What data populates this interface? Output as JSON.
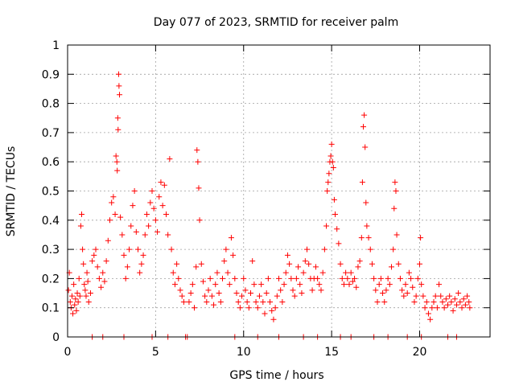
{
  "chart_data": {
    "type": "scatter",
    "title": "Day 077 of 2023, SRMTID for receiver palm",
    "xlabel": "GPS time / hours",
    "ylabel": "SRMTID / TECUs",
    "xlim": [
      0,
      24
    ],
    "ylim": [
      0,
      1
    ],
    "x_ticks": [
      0,
      5,
      10,
      15,
      20
    ],
    "x_tick_labels": [
      "0",
      "5",
      "10",
      "15",
      "20"
    ],
    "y_ticks": [
      0,
      0.1,
      0.2,
      0.3,
      0.4,
      0.5,
      0.6,
      0.7,
      0.8,
      0.9,
      1
    ],
    "y_tick_labels": [
      "0",
      "0.1",
      "0.2",
      "0.3",
      "0.4",
      "0.5",
      "0.6",
      "0.7",
      "0.8",
      "0.9",
      "1"
    ],
    "grid": true,
    "marker": "+",
    "series_color": "#ff0000",
    "series": [
      {
        "name": "SRMTID",
        "points": [
          [
            0.05,
            0.16
          ],
          [
            0.1,
            0.22
          ],
          [
            0.15,
            0.12
          ],
          [
            0.2,
            0.1
          ],
          [
            0.25,
            0.14
          ],
          [
            0.3,
            0.08
          ],
          [
            0.35,
            0.18
          ],
          [
            0.4,
            0.11
          ],
          [
            0.45,
            0.13
          ],
          [
            0.5,
            0.09
          ],
          [
            0.55,
            0.15
          ],
          [
            0.6,
            0.12
          ],
          [
            0.65,
            0.2
          ],
          [
            0.7,
            0.14
          ],
          [
            0.75,
            0.38
          ],
          [
            0.8,
            0.42
          ],
          [
            0.85,
            0.3
          ],
          [
            0.9,
            0.25
          ],
          [
            0.95,
            0.18
          ],
          [
            1.0,
            0.16
          ],
          [
            1.05,
            0.14
          ],
          [
            1.1,
            0.22
          ],
          [
            1.15,
            0.19
          ],
          [
            1.2,
            0.12
          ],
          [
            1.3,
            0.15
          ],
          [
            1.4,
            0.26
          ],
          [
            1.5,
            0.28
          ],
          [
            1.6,
            0.3
          ],
          [
            1.7,
            0.24
          ],
          [
            1.8,
            0.2
          ],
          [
            1.9,
            0.17
          ],
          [
            2.0,
            0.22
          ],
          [
            2.1,
            0.19
          ],
          [
            2.2,
            0.26
          ],
          [
            2.3,
            0.33
          ],
          [
            2.4,
            0.4
          ],
          [
            2.5,
            0.46
          ],
          [
            2.6,
            0.48
          ],
          [
            2.7,
            0.42
          ],
          [
            2.75,
            0.62
          ],
          [
            2.8,
            0.6
          ],
          [
            2.82,
            0.57
          ],
          [
            2.85,
            0.75
          ],
          [
            2.87,
            0.71
          ],
          [
            2.9,
            0.9
          ],
          [
            2.92,
            0.86
          ],
          [
            2.95,
            0.83
          ],
          [
            3.0,
            0.41
          ],
          [
            3.1,
            0.35
          ],
          [
            3.2,
            0.28
          ],
          [
            3.3,
            0.2
          ],
          [
            3.4,
            0.24
          ],
          [
            3.5,
            0.3
          ],
          [
            3.6,
            0.38
          ],
          [
            3.7,
            0.45
          ],
          [
            3.8,
            0.5
          ],
          [
            3.9,
            0.36
          ],
          [
            4.0,
            0.3
          ],
          [
            4.1,
            0.22
          ],
          [
            4.2,
            0.25
          ],
          [
            4.3,
            0.28
          ],
          [
            4.4,
            0.35
          ],
          [
            4.5,
            0.42
          ],
          [
            4.6,
            0.38
          ],
          [
            4.7,
            0.46
          ],
          [
            4.8,
            0.5
          ],
          [
            4.9,
            0.44
          ],
          [
            5.0,
            0.4
          ],
          [
            5.1,
            0.36
          ],
          [
            5.2,
            0.48
          ],
          [
            5.3,
            0.53
          ],
          [
            5.4,
            0.45
          ],
          [
            5.5,
            0.52
          ],
          [
            5.6,
            0.42
          ],
          [
            5.7,
            0.35
          ],
          [
            5.8,
            0.61
          ],
          [
            5.9,
            0.3
          ],
          [
            6.0,
            0.22
          ],
          [
            6.1,
            0.18
          ],
          [
            6.2,
            0.25
          ],
          [
            6.3,
            0.2
          ],
          [
            6.4,
            0.16
          ],
          [
            6.5,
            0.14
          ],
          [
            6.6,
            0.12
          ],
          [
            6.7,
            0.0
          ],
          [
            6.8,
            0.0
          ],
          [
            6.9,
            0.12
          ],
          [
            7.0,
            0.15
          ],
          [
            7.1,
            0.18
          ],
          [
            7.2,
            0.1
          ],
          [
            7.3,
            0.24
          ],
          [
            7.35,
            0.64
          ],
          [
            7.4,
            0.6
          ],
          [
            7.45,
            0.51
          ],
          [
            7.5,
            0.4
          ],
          [
            7.6,
            0.25
          ],
          [
            7.7,
            0.19
          ],
          [
            7.8,
            0.14
          ],
          [
            7.9,
            0.12
          ],
          [
            8.0,
            0.16
          ],
          [
            8.1,
            0.2
          ],
          [
            8.2,
            0.14
          ],
          [
            8.3,
            0.11
          ],
          [
            8.4,
            0.18
          ],
          [
            8.5,
            0.22
          ],
          [
            8.6,
            0.15
          ],
          [
            8.7,
            0.12
          ],
          [
            8.8,
            0.2
          ],
          [
            8.9,
            0.26
          ],
          [
            9.0,
            0.3
          ],
          [
            9.1,
            0.22
          ],
          [
            9.2,
            0.18
          ],
          [
            9.3,
            0.34
          ],
          [
            9.4,
            0.28
          ],
          [
            9.5,
            0.2
          ],
          [
            9.6,
            0.15
          ],
          [
            9.7,
            0.12
          ],
          [
            9.8,
            0.1
          ],
          [
            9.9,
            0.14
          ],
          [
            10.0,
            0.2
          ],
          [
            10.1,
            0.16
          ],
          [
            10.2,
            0.12
          ],
          [
            10.3,
            0.1
          ],
          [
            10.4,
            0.15
          ],
          [
            10.5,
            0.26
          ],
          [
            10.6,
            0.18
          ],
          [
            10.7,
            0.12
          ],
          [
            10.8,
            0.1
          ],
          [
            10.9,
            0.14
          ],
          [
            11.0,
            0.18
          ],
          [
            11.1,
            0.12
          ],
          [
            11.2,
            0.08
          ],
          [
            11.3,
            0.15
          ],
          [
            11.4,
            0.2
          ],
          [
            11.5,
            0.12
          ],
          [
            11.6,
            0.09
          ],
          [
            11.7,
            0.06
          ],
          [
            11.8,
            0.1
          ],
          [
            11.9,
            0.14
          ],
          [
            12.0,
            0.2
          ],
          [
            12.1,
            0.16
          ],
          [
            12.2,
            0.12
          ],
          [
            12.3,
            0.18
          ],
          [
            12.4,
            0.22
          ],
          [
            12.5,
            0.28
          ],
          [
            12.6,
            0.25
          ],
          [
            12.7,
            0.2
          ],
          [
            12.8,
            0.16
          ],
          [
            12.9,
            0.14
          ],
          [
            13.0,
            0.2
          ],
          [
            13.1,
            0.24
          ],
          [
            13.2,
            0.18
          ],
          [
            13.3,
            0.15
          ],
          [
            13.4,
            0.22
          ],
          [
            13.5,
            0.26
          ],
          [
            13.6,
            0.3
          ],
          [
            13.7,
            0.25
          ],
          [
            13.8,
            0.2
          ],
          [
            13.9,
            0.16
          ],
          [
            14.0,
            0.2
          ],
          [
            14.1,
            0.24
          ],
          [
            14.2,
            0.2
          ],
          [
            14.3,
            0.18
          ],
          [
            14.4,
            0.16
          ],
          [
            14.5,
            0.22
          ],
          [
            14.6,
            0.3
          ],
          [
            14.7,
            0.38
          ],
          [
            14.75,
            0.5
          ],
          [
            14.8,
            0.53
          ],
          [
            14.85,
            0.56
          ],
          [
            14.9,
            0.6
          ],
          [
            14.95,
            0.62
          ],
          [
            15.0,
            0.66
          ],
          [
            15.05,
            0.6
          ],
          [
            15.1,
            0.58
          ],
          [
            15.15,
            0.47
          ],
          [
            15.2,
            0.42
          ],
          [
            15.3,
            0.37
          ],
          [
            15.4,
            0.32
          ],
          [
            15.5,
            0.25
          ],
          [
            15.6,
            0.2
          ],
          [
            15.7,
            0.18
          ],
          [
            15.8,
            0.22
          ],
          [
            15.9,
            0.2
          ],
          [
            16.0,
            0.18
          ],
          [
            16.1,
            0.22
          ],
          [
            16.2,
            0.19
          ],
          [
            16.3,
            0.2
          ],
          [
            16.4,
            0.17
          ],
          [
            16.5,
            0.24
          ],
          [
            16.6,
            0.26
          ],
          [
            16.7,
            0.34
          ],
          [
            16.75,
            0.53
          ],
          [
            16.8,
            0.72
          ],
          [
            16.85,
            0.76
          ],
          [
            16.9,
            0.65
          ],
          [
            16.95,
            0.46
          ],
          [
            17.0,
            0.38
          ],
          [
            17.1,
            0.34
          ],
          [
            17.2,
            0.3
          ],
          [
            17.3,
            0.25
          ],
          [
            17.4,
            0.2
          ],
          [
            17.5,
            0.16
          ],
          [
            17.6,
            0.12
          ],
          [
            17.7,
            0.18
          ],
          [
            17.8,
            0.2
          ],
          [
            17.9,
            0.15
          ],
          [
            18.0,
            0.12
          ],
          [
            18.1,
            0.16
          ],
          [
            18.2,
            0.2
          ],
          [
            18.3,
            0.18
          ],
          [
            18.4,
            0.24
          ],
          [
            18.5,
            0.3
          ],
          [
            18.55,
            0.44
          ],
          [
            18.6,
            0.53
          ],
          [
            18.65,
            0.5
          ],
          [
            18.7,
            0.35
          ],
          [
            18.8,
            0.25
          ],
          [
            18.9,
            0.2
          ],
          [
            19.0,
            0.16
          ],
          [
            19.1,
            0.14
          ],
          [
            19.2,
            0.18
          ],
          [
            19.3,
            0.15
          ],
          [
            19.4,
            0.22
          ],
          [
            19.5,
            0.2
          ],
          [
            19.6,
            0.17
          ],
          [
            19.7,
            0.12
          ],
          [
            19.8,
            0.14
          ],
          [
            19.9,
            0.2
          ],
          [
            20.0,
            0.25
          ],
          [
            20.05,
            0.34
          ],
          [
            20.1,
            0.18
          ],
          [
            20.2,
            0.14
          ],
          [
            20.3,
            0.1
          ],
          [
            20.4,
            0.12
          ],
          [
            20.5,
            0.08
          ],
          [
            20.6,
            0.06
          ],
          [
            20.7,
            0.1
          ],
          [
            20.8,
            0.12
          ],
          [
            20.9,
            0.14
          ],
          [
            21.0,
            0.1
          ],
          [
            21.1,
            0.18
          ],
          [
            21.2,
            0.14
          ],
          [
            21.3,
            0.12
          ],
          [
            21.4,
            0.1
          ],
          [
            21.5,
            0.13
          ],
          [
            21.6,
            0.11
          ],
          [
            21.7,
            0.14
          ],
          [
            21.8,
            0.12
          ],
          [
            21.9,
            0.09
          ],
          [
            22.0,
            0.13
          ],
          [
            22.1,
            0.11
          ],
          [
            22.2,
            0.15
          ],
          [
            22.3,
            0.12
          ],
          [
            22.4,
            0.1
          ],
          [
            22.5,
            0.13
          ],
          [
            22.6,
            0.11
          ],
          [
            22.7,
            0.14
          ],
          [
            22.8,
            0.12
          ],
          [
            22.85,
            0.1
          ],
          [
            1.4,
            0.0
          ],
          [
            2.0,
            0.0
          ],
          [
            3.2,
            0.0
          ],
          [
            4.8,
            0.0
          ],
          [
            5.7,
            0.0
          ],
          [
            9.5,
            0.0
          ],
          [
            10.8,
            0.0
          ],
          [
            12.0,
            0.0
          ],
          [
            13.4,
            0.0
          ],
          [
            14.2,
            0.0
          ],
          [
            15.5,
            0.0
          ],
          [
            16.1,
            0.0
          ],
          [
            17.4,
            0.0
          ],
          [
            18.2,
            0.0
          ],
          [
            19.3,
            0.0
          ],
          [
            20.1,
            0.0
          ],
          [
            21.6,
            0.0
          ],
          [
            22.1,
            0.0
          ]
        ]
      }
    ]
  }
}
